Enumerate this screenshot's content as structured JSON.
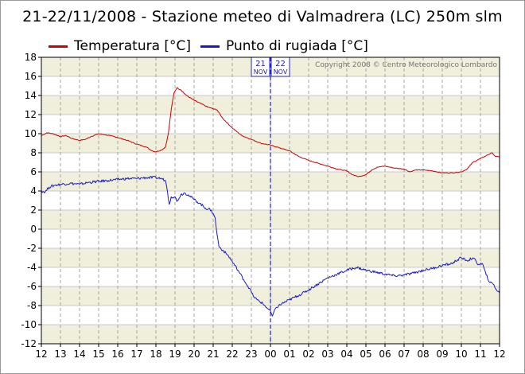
{
  "chart_data": {
    "type": "line",
    "title": "21-22/11/2008 - Stazione meteo di Valmadrera (LC) 250m slm",
    "copyright": "Copyright 2008 © Centro Meteorologico Lombardo",
    "date_markers": [
      {
        "day": "21",
        "month": "NOV"
      },
      {
        "day": "22",
        "month": "NOV"
      }
    ],
    "x_tick_labels": [
      "12",
      "13",
      "14",
      "15",
      "16",
      "17",
      "18",
      "19",
      "20",
      "21",
      "22",
      "23",
      "00",
      "01",
      "02",
      "03",
      "04",
      "05",
      "06",
      "07",
      "08",
      "09",
      "10",
      "11",
      "12"
    ],
    "y_tick_labels": [
      "18",
      "16",
      "14",
      "12",
      "10",
      "8",
      "6",
      "4",
      "2",
      "0",
      "-2",
      "-4",
      "-6",
      "-8",
      "-10",
      "-12"
    ],
    "ylim": [
      -12,
      18
    ],
    "x_unit": "hours from 21/11 12:00",
    "xlim": [
      0,
      24
    ],
    "grid": true,
    "legend_position": "top",
    "series": [
      {
        "name": "Temperatura [°C]",
        "color": "#cc0000",
        "points": [
          [
            0.0,
            9.8
          ],
          [
            0.3,
            10.1
          ],
          [
            0.6,
            10.0
          ],
          [
            1.0,
            9.7
          ],
          [
            1.3,
            9.8
          ],
          [
            1.6,
            9.5
          ],
          [
            2.0,
            9.3
          ],
          [
            2.3,
            9.4
          ],
          [
            2.6,
            9.7
          ],
          [
            3.0,
            10.0
          ],
          [
            3.3,
            9.9
          ],
          [
            3.6,
            9.8
          ],
          [
            4.0,
            9.6
          ],
          [
            4.5,
            9.3
          ],
          [
            5.0,
            8.9
          ],
          [
            5.5,
            8.6
          ],
          [
            5.8,
            8.2
          ],
          [
            6.0,
            8.1
          ],
          [
            6.3,
            8.3
          ],
          [
            6.5,
            8.6
          ],
          [
            6.65,
            10.0
          ],
          [
            6.8,
            12.5
          ],
          [
            6.95,
            14.3
          ],
          [
            7.1,
            14.8
          ],
          [
            7.3,
            14.6
          ],
          [
            7.6,
            14.0
          ],
          [
            8.0,
            13.5
          ],
          [
            8.4,
            13.1
          ],
          [
            8.7,
            12.8
          ],
          [
            9.0,
            12.6
          ],
          [
            9.2,
            12.5
          ],
          [
            9.5,
            11.6
          ],
          [
            10.0,
            10.6
          ],
          [
            10.5,
            9.8
          ],
          [
            11.0,
            9.4
          ],
          [
            11.5,
            9.0
          ],
          [
            12.0,
            8.8
          ],
          [
            12.5,
            8.5
          ],
          [
            13.0,
            8.2
          ],
          [
            13.5,
            7.6
          ],
          [
            14.0,
            7.2
          ],
          [
            14.5,
            6.9
          ],
          [
            15.0,
            6.6
          ],
          [
            15.5,
            6.3
          ],
          [
            16.0,
            6.1
          ],
          [
            16.3,
            5.7
          ],
          [
            16.6,
            5.5
          ],
          [
            17.0,
            5.7
          ],
          [
            17.3,
            6.2
          ],
          [
            17.6,
            6.5
          ],
          [
            18.0,
            6.6
          ],
          [
            18.5,
            6.4
          ],
          [
            19.0,
            6.3
          ],
          [
            19.3,
            6.0
          ],
          [
            19.6,
            6.2
          ],
          [
            20.0,
            6.2
          ],
          [
            20.5,
            6.1
          ],
          [
            21.0,
            5.9
          ],
          [
            21.5,
            5.9
          ],
          [
            22.0,
            6.0
          ],
          [
            22.3,
            6.3
          ],
          [
            22.6,
            7.0
          ],
          [
            23.0,
            7.4
          ],
          [
            23.3,
            7.7
          ],
          [
            23.6,
            8.0
          ],
          [
            23.8,
            7.6
          ],
          [
            24.0,
            7.6
          ]
        ]
      },
      {
        "name": "Punto di rugiada [°C]",
        "color": "#1a1acc",
        "points": [
          [
            0.0,
            4.0
          ],
          [
            0.2,
            3.9
          ],
          [
            0.4,
            4.4
          ],
          [
            0.7,
            4.6
          ],
          [
            1.0,
            4.7
          ],
          [
            1.5,
            4.8
          ],
          [
            2.0,
            4.7
          ],
          [
            2.5,
            4.9
          ],
          [
            3.0,
            5.0
          ],
          [
            3.5,
            5.1
          ],
          [
            4.0,
            5.2
          ],
          [
            4.5,
            5.3
          ],
          [
            5.0,
            5.3
          ],
          [
            5.5,
            5.4
          ],
          [
            6.0,
            5.4
          ],
          [
            6.3,
            5.3
          ],
          [
            6.5,
            5.1
          ],
          [
            6.6,
            4.0
          ],
          [
            6.7,
            2.6
          ],
          [
            6.8,
            3.4
          ],
          [
            7.0,
            3.4
          ],
          [
            7.1,
            2.9
          ],
          [
            7.3,
            3.6
          ],
          [
            7.5,
            3.8
          ],
          [
            7.7,
            3.6
          ],
          [
            8.0,
            3.1
          ],
          [
            8.3,
            2.7
          ],
          [
            8.6,
            2.2
          ],
          [
            8.9,
            2.0
          ],
          [
            9.1,
            1.2
          ],
          [
            9.2,
            -0.5
          ],
          [
            9.3,
            -1.8
          ],
          [
            9.5,
            -2.2
          ],
          [
            9.8,
            -2.8
          ],
          [
            10.0,
            -3.4
          ],
          [
            10.3,
            -4.3
          ],
          [
            10.6,
            -5.3
          ],
          [
            10.9,
            -6.2
          ],
          [
            11.1,
            -7.0
          ],
          [
            11.3,
            -7.4
          ],
          [
            11.6,
            -7.8
          ],
          [
            11.8,
            -8.2
          ],
          [
            12.0,
            -8.6
          ],
          [
            12.1,
            -9.1
          ],
          [
            12.3,
            -8.2
          ],
          [
            12.6,
            -7.8
          ],
          [
            13.0,
            -7.4
          ],
          [
            13.4,
            -7.0
          ],
          [
            13.8,
            -6.6
          ],
          [
            14.2,
            -6.1
          ],
          [
            14.6,
            -5.6
          ],
          [
            15.0,
            -5.1
          ],
          [
            15.5,
            -4.7
          ],
          [
            16.0,
            -4.3
          ],
          [
            16.5,
            -4.0
          ],
          [
            17.0,
            -4.3
          ],
          [
            17.5,
            -4.5
          ],
          [
            18.0,
            -4.7
          ],
          [
            18.5,
            -4.9
          ],
          [
            19.0,
            -4.8
          ],
          [
            19.5,
            -4.6
          ],
          [
            20.0,
            -4.3
          ],
          [
            20.5,
            -4.1
          ],
          [
            21.0,
            -3.8
          ],
          [
            21.5,
            -3.6
          ],
          [
            21.8,
            -3.2
          ],
          [
            22.0,
            -3.0
          ],
          [
            22.3,
            -3.3
          ],
          [
            22.6,
            -3.0
          ],
          [
            22.9,
            -3.7
          ],
          [
            23.1,
            -3.6
          ],
          [
            23.3,
            -4.8
          ],
          [
            23.5,
            -5.6
          ],
          [
            23.7,
            -5.8
          ],
          [
            23.85,
            -6.4
          ],
          [
            24.0,
            -6.7
          ]
        ]
      }
    ]
  }
}
